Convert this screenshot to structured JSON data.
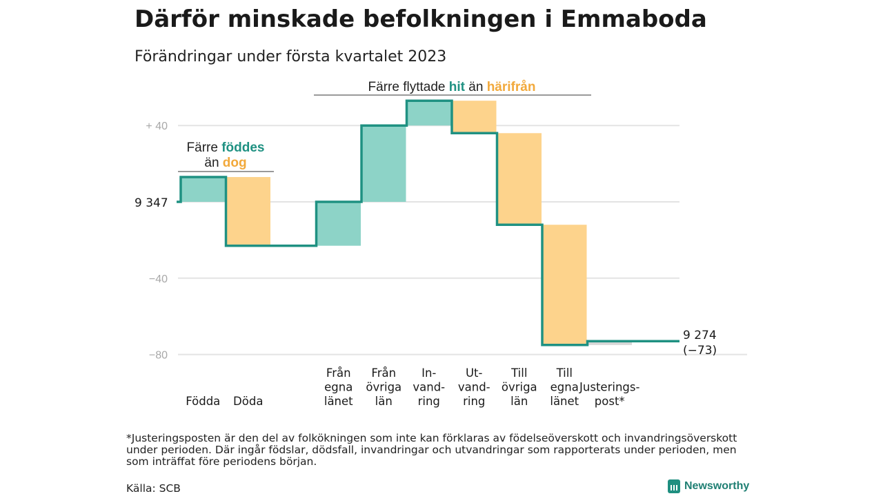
{
  "header": {
    "title": "Därför minskade befolkningen i Emmaboda",
    "subtitle": "Förändringar under första kvartalet 2023"
  },
  "annotations": {
    "births": {
      "line1_pre": "Färre ",
      "line1_hi": "föddes",
      "line2_pre": "än ",
      "line2_hi": "dog"
    },
    "moves": {
      "pre": "Färre flyttade ",
      "hi1": "hit",
      "mid": " än ",
      "hi2": "härifrån"
    }
  },
  "chart_data": {
    "type": "waterfall",
    "title": "Därför minskade befolkningen i Emmaboda",
    "subtitle": "Förändringar under första kvartalet 2023",
    "start_label": "9 347",
    "end_label_line1": "9 274",
    "end_label_line2": "(−73)",
    "start_value": 9347,
    "end_value": 9274,
    "ylim": [
      -80,
      60
    ],
    "y_ticks": [
      {
        "value": 40,
        "label": "+ 40"
      },
      {
        "value": 0,
        "label": ""
      },
      {
        "value": -40,
        "label": "−40"
      },
      {
        "value": -80,
        "label": "−80"
      }
    ],
    "steps": [
      {
        "label_lines": [
          "Födda"
        ],
        "change": 13,
        "type": "positive"
      },
      {
        "label_lines": [
          "Döda"
        ],
        "change": -36,
        "type": "negative"
      },
      {
        "label_lines": [
          "Från",
          "egna",
          "länet"
        ],
        "change": 23,
        "type": "positive",
        "gap_before": true
      },
      {
        "label_lines": [
          "Från",
          "övriga",
          "län"
        ],
        "change": 40,
        "type": "positive"
      },
      {
        "label_lines": [
          "In-",
          "vand-",
          "ring"
        ],
        "change": 13,
        "type": "positive"
      },
      {
        "label_lines": [
          "Ut-",
          "vand-",
          "ring"
        ],
        "change": -17,
        "type": "negative"
      },
      {
        "label_lines": [
          "Till",
          "övriga",
          "län"
        ],
        "change": -48,
        "type": "negative"
      },
      {
        "label_lines": [
          "Till",
          "egna",
          "länet"
        ],
        "change": -63,
        "type": "negative"
      },
      {
        "label_lines": [
          "Justerings-",
          "post*"
        ],
        "change": 2,
        "type": "adjustment"
      }
    ],
    "colors": {
      "positive_fill": "#8dd3c7",
      "negative_fill": "#fdd38c",
      "line": "#1f9182",
      "grid": "#e3e3e3"
    }
  },
  "footer": {
    "footnote": "*Justeringsposten är den del av folkökningen som inte kan förklaras av födelseöverskott och invandringsöverskott under perioden. Där ingår födslar, dödsfall, invandringar och utvandringar som rapporterats under perioden, men som inträffat före periodens början.",
    "source": "Källa: SCB",
    "brand": "Newsworthy"
  }
}
